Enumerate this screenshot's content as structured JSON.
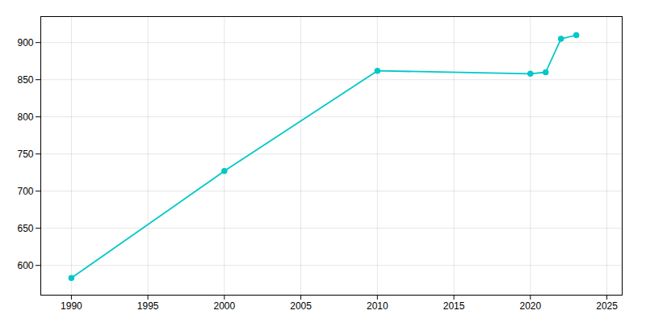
{
  "chart_data": {
    "type": "line",
    "x": [
      1990,
      2000,
      2010,
      2020,
      2021,
      2022,
      2023
    ],
    "values": [
      583,
      727,
      862,
      858,
      860,
      905,
      910
    ],
    "color": "#00C8C8",
    "marker": "circle",
    "xlim": [
      1988,
      2026
    ],
    "ylim": [
      560,
      935
    ],
    "xticks": [
      1990,
      1995,
      2000,
      2005,
      2010,
      2015,
      2020,
      2025
    ],
    "yticks": [
      600,
      650,
      700,
      750,
      800,
      850,
      900
    ],
    "grid": true
  }
}
